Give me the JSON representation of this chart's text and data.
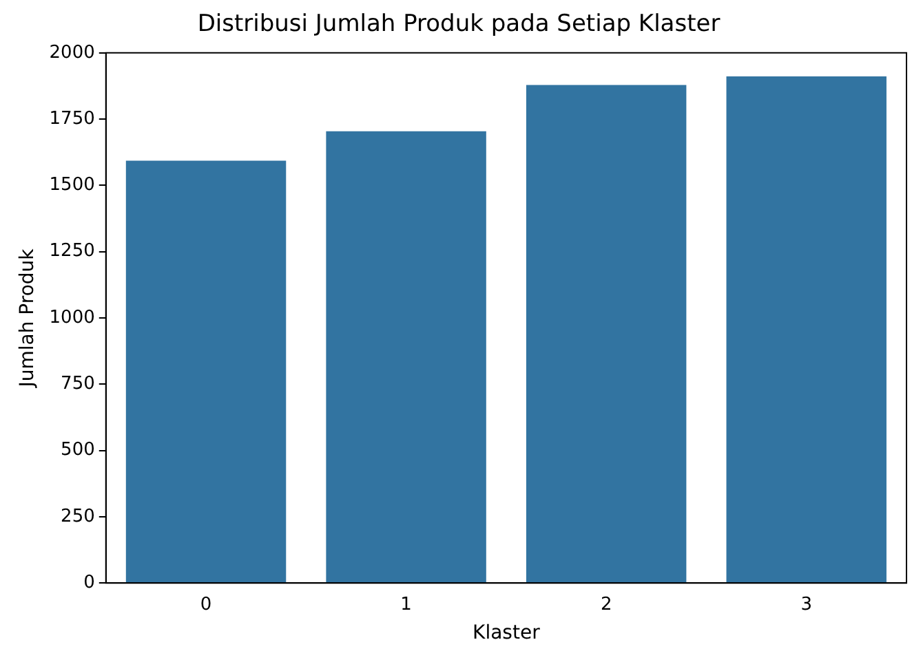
{
  "chart_data": {
    "type": "bar",
    "title": "Distribusi Jumlah Produk pada Setiap Klaster",
    "xlabel": "Klaster",
    "ylabel": "Jumlah Produk",
    "categories": [
      "0",
      "1",
      "2",
      "3"
    ],
    "values": [
      1593,
      1704,
      1879,
      1911
    ],
    "color": "#3274a1",
    "ylim": [
      0,
      2000
    ],
    "yticks": [
      0,
      250,
      500,
      750,
      1000,
      1250,
      1500,
      1750,
      2000
    ],
    "grid": false,
    "legend": false
  }
}
